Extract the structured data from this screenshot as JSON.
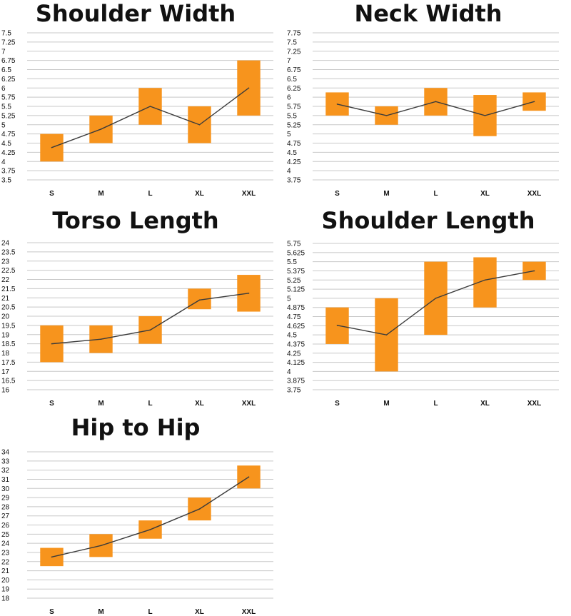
{
  "colors": {
    "bar": "#F7941D",
    "line": "#3B3B3B",
    "grid": "#C8C8C8",
    "text": "#111111"
  },
  "chart_data": [
    {
      "type": "range-bar with line",
      "title": "Shoulder Width",
      "categories": [
        "S",
        "M",
        "L",
        "XL",
        "XXL"
      ],
      "ylim": [
        3.5,
        7.5
      ],
      "yticks": [
        "3.5",
        "3.75",
        "4",
        "4.25",
        "4.5",
        "4.75",
        "5",
        "5.25",
        "5.5",
        "5.75",
        "6",
        "6.25",
        "6.5",
        "6.75",
        "7",
        "7.25",
        "7.5"
      ],
      "ranges": [
        [
          4,
          4.75
        ],
        [
          4.5,
          5.25
        ],
        [
          5,
          6
        ],
        [
          4.5,
          5.5
        ],
        [
          5.25,
          6.75
        ]
      ],
      "line": [
        4.38,
        4.88,
        5.5,
        5,
        6
      ],
      "grid": true
    },
    {
      "type": "range-bar with line",
      "title": "Neck Width",
      "categories": [
        "S",
        "M",
        "L",
        "XL",
        "XXL"
      ],
      "ylim": [
        3.75,
        7.75
      ],
      "yticks": [
        "3.75",
        "4",
        "4.25",
        "4.5",
        "4.75",
        "5",
        "5.25",
        "5.5",
        "5.75",
        "6",
        "6.25",
        "6.5",
        "6.75",
        "7",
        "7.25",
        "7.5",
        "7.75"
      ],
      "ranges": [
        [
          5.5,
          6.13
        ],
        [
          5.25,
          5.75
        ],
        [
          5.5,
          6.25
        ],
        [
          4.94,
          6.06
        ],
        [
          5.63,
          6.13
        ]
      ],
      "line": [
        5.81,
        5.5,
        5.88,
        5.5,
        5.88
      ],
      "grid": true
    },
    {
      "type": "range-bar with line",
      "title": "Torso Length",
      "categories": [
        "S",
        "M",
        "L",
        "XL",
        "XXL"
      ],
      "ylim": [
        16,
        24
      ],
      "yticks": [
        "16",
        "16.5",
        "17",
        "17.5",
        "18",
        "18.5",
        "19",
        "19.5",
        "20",
        "20.5",
        "21",
        "21.5",
        "22",
        "22.5",
        "23",
        "23.5",
        "24"
      ],
      "ranges": [
        [
          17.5,
          19.5
        ],
        [
          18,
          19.5
        ],
        [
          18.5,
          20
        ],
        [
          20.38,
          21.5
        ],
        [
          20.25,
          22.25
        ]
      ],
      "line": [
        18.5,
        18.75,
        19.25,
        20.88,
        21.25
      ],
      "grid": true
    },
    {
      "type": "range-bar with line",
      "title": "Shoulder Length",
      "categories": [
        "S",
        "M",
        "L",
        "XL",
        "XXL"
      ],
      "ylim": [
        3.75,
        5.75
      ],
      "yticks": [
        "3.75",
        "3.875",
        "4",
        "4.125",
        "4.25",
        "4.375",
        "4.5",
        "4.625",
        "4.75",
        "4.875",
        "5",
        "5.125",
        "5.25",
        "5.375",
        "5.5",
        "5.625",
        "5.75"
      ],
      "ranges": [
        [
          4.375,
          4.875
        ],
        [
          4,
          5
        ],
        [
          4.5,
          5.5
        ],
        [
          4.875,
          5.56
        ],
        [
          5.25,
          5.5
        ]
      ],
      "line": [
        4.63,
        4.5,
        5,
        5.25,
        5.375
      ],
      "grid": true
    },
    {
      "type": "range-bar with line",
      "title": "Hip to Hip",
      "categories": [
        "S",
        "M",
        "L",
        "XL",
        "XXL"
      ],
      "ylim": [
        18,
        34
      ],
      "yticks": [
        "18",
        "19",
        "20",
        "21",
        "22",
        "23",
        "24",
        "25",
        "26",
        "27",
        "28",
        "29",
        "30",
        "31",
        "32",
        "33",
        "34"
      ],
      "ranges": [
        [
          21.5,
          23.5
        ],
        [
          22.5,
          25
        ],
        [
          24.5,
          26.5
        ],
        [
          26.5,
          29
        ],
        [
          30,
          32.5
        ]
      ],
      "line": [
        22.5,
        23.75,
        25.5,
        27.75,
        31.25
      ],
      "grid": true
    }
  ]
}
